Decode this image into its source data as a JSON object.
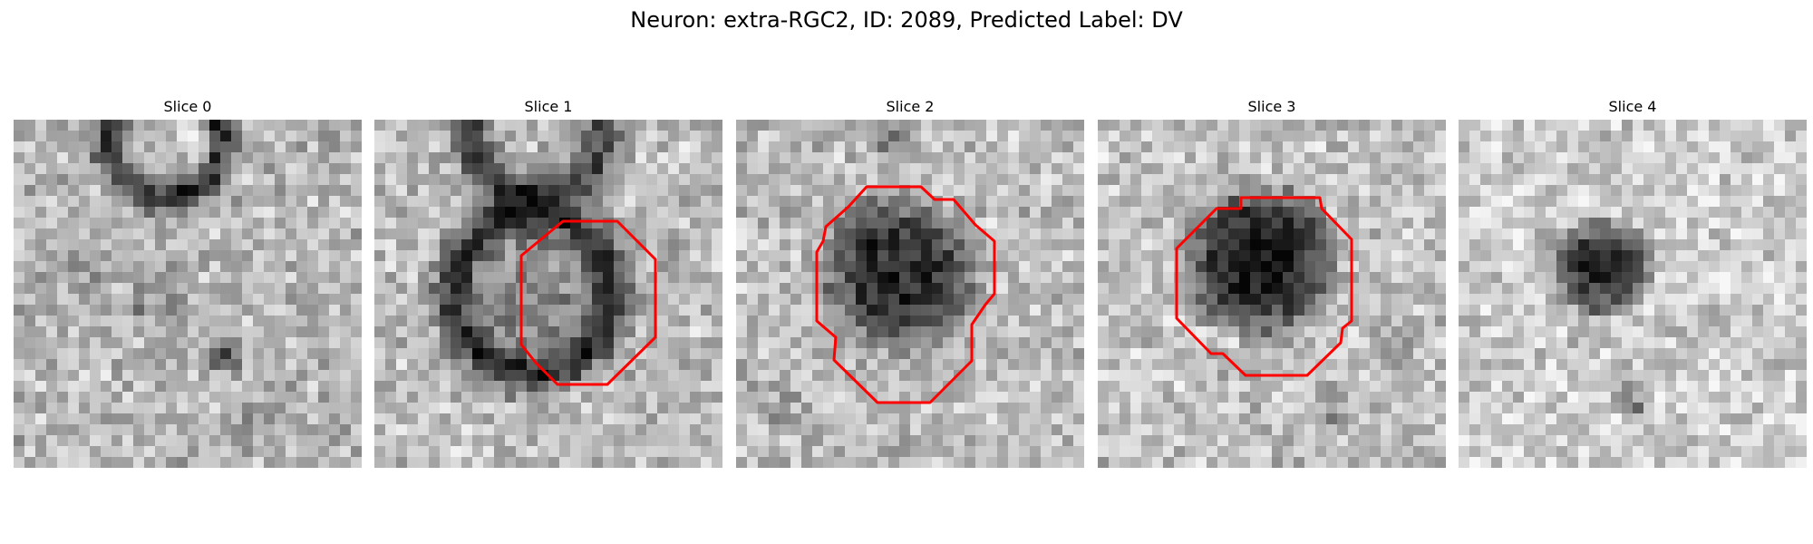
{
  "figure": {
    "title": "Neuron: extra-RGC2, ID: 2089, Predicted Label: DV"
  },
  "image_info": {
    "content": "grayscale microscopy patches at five consecutive slices; red polygons outline the segmented neuron",
    "colormap": "gray",
    "outline_color": "#ff0000",
    "grid_resolution": 32
  },
  "panels": [
    {
      "title": "Slice 0",
      "has_outline": false
    },
    {
      "title": "Slice 1",
      "has_outline": true
    },
    {
      "title": "Slice 2",
      "has_outline": true
    },
    {
      "title": "Slice 3",
      "has_outline": true
    },
    {
      "title": "Slice 4",
      "has_outline": false
    }
  ]
}
